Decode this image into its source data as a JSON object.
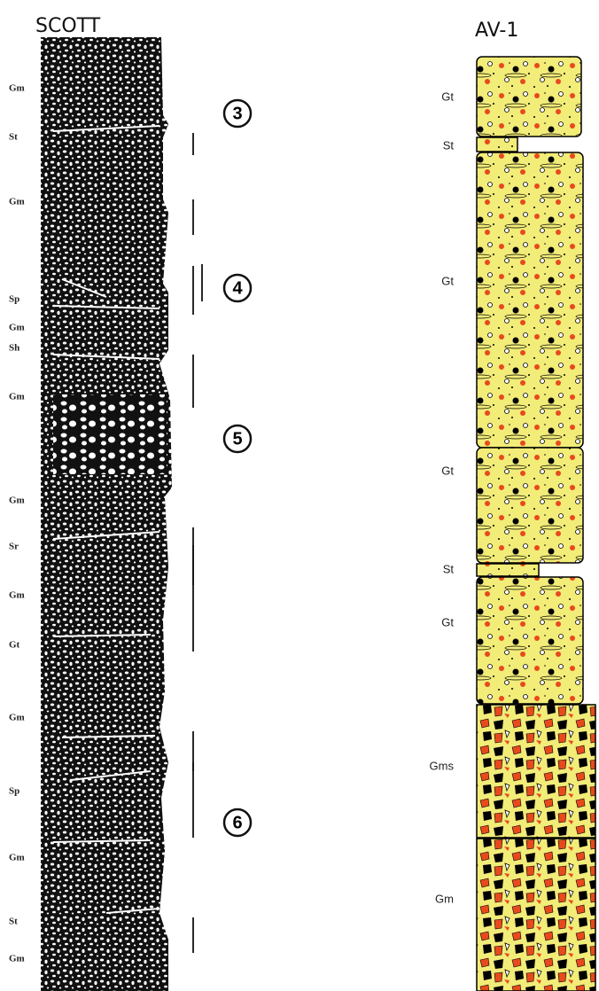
{
  "left": {
    "title": "SCOTT",
    "labels": [
      "Gm",
      "St",
      "Gm",
      "Sp",
      "Gm",
      "Sh",
      "Gm",
      "Gm",
      "Sr",
      "Gm",
      "Gt",
      "Gm",
      "Sp",
      "Gm",
      "St",
      "Gm"
    ]
  },
  "circles": [
    "3",
    "4",
    "5",
    "6"
  ],
  "right": {
    "title": "AV-1",
    "labels": [
      "Gt",
      "St",
      "Gt",
      "Gt",
      "St",
      "Gt",
      "Gms",
      "Gm"
    ]
  }
}
